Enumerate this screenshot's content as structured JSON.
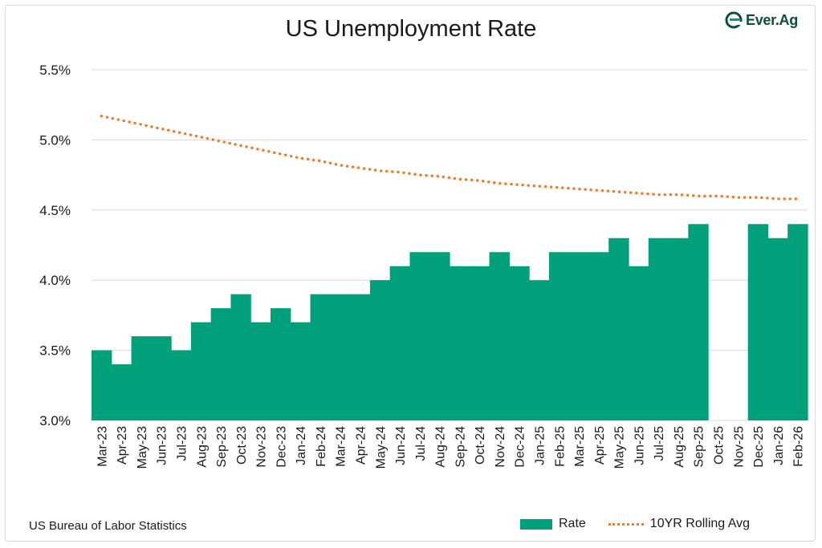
{
  "header": {
    "title": "US Unemployment Rate"
  },
  "brand": {
    "name": "Ever.Ag"
  },
  "footer": {
    "source": "US Bureau of Labor Statistics"
  },
  "colors": {
    "bar": "#00a07a",
    "avg": "#ed7d31",
    "grid": "#d9d9d9",
    "text": "#1a1a1a"
  },
  "chart_data": {
    "type": "bar",
    "title": "US Unemployment Rate",
    "xlabel": "",
    "ylabel": "",
    "ylim": [
      3.0,
      5.5
    ],
    "yticks": [
      3.0,
      3.5,
      4.0,
      4.5,
      5.0,
      5.5
    ],
    "ytick_labels": [
      "3.0%",
      "3.5%",
      "4.0%",
      "4.5%",
      "5.0%",
      "5.5%"
    ],
    "grid": true,
    "legend_position": "bottom-right",
    "categories": [
      "Mar-23",
      "Apr-23",
      "May-23",
      "Jun-23",
      "Jul-23",
      "Aug-23",
      "Sep-23",
      "Oct-23",
      "Nov-23",
      "Dec-23",
      "Jan-24",
      "Feb-24",
      "Mar-24",
      "Apr-24",
      "May-24",
      "Jun-24",
      "Jul-24",
      "Aug-24",
      "Sep-24",
      "Oct-24",
      "Nov-24",
      "Dec-24",
      "Jan-25",
      "Feb-25",
      "Mar-25",
      "Apr-25",
      "May-25",
      "Jun-25",
      "Jul-25",
      "Aug-25",
      "Sep-25",
      "Oct-25",
      "Nov-25",
      "Dec-25",
      "Jan-26",
      "Feb-26"
    ],
    "series": [
      {
        "name": "Rate",
        "type": "bar",
        "values": [
          3.5,
          3.4,
          3.6,
          3.6,
          3.5,
          3.7,
          3.8,
          3.9,
          3.7,
          3.8,
          3.7,
          3.9,
          3.9,
          3.9,
          4.0,
          4.1,
          4.2,
          4.2,
          4.1,
          4.1,
          4.2,
          4.1,
          4.0,
          4.2,
          4.2,
          4.2,
          4.3,
          4.1,
          4.3,
          4.3,
          4.4,
          null,
          null,
          4.4,
          4.3,
          4.4
        ]
      },
      {
        "name": "10YR Rolling Avg",
        "type": "line",
        "style": "dotted",
        "values": [
          5.17,
          5.14,
          5.11,
          5.08,
          5.05,
          5.02,
          4.99,
          4.96,
          4.93,
          4.9,
          4.87,
          4.85,
          4.82,
          4.8,
          4.78,
          4.77,
          4.75,
          4.74,
          4.72,
          4.71,
          4.69,
          4.68,
          4.67,
          4.66,
          4.65,
          4.64,
          4.63,
          4.62,
          4.61,
          4.61,
          4.6,
          4.6,
          4.59,
          4.59,
          4.58,
          4.58
        ]
      }
    ]
  }
}
